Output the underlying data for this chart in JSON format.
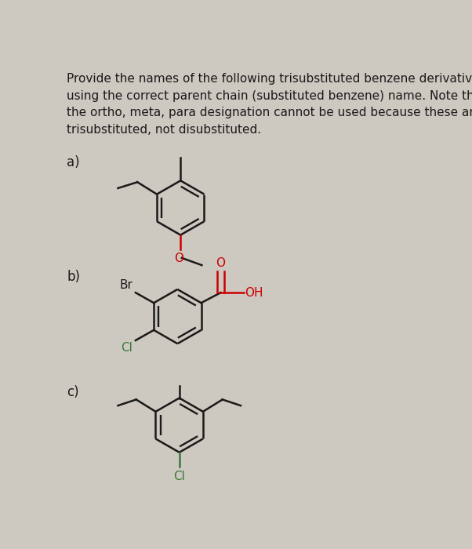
{
  "background_color": "#cdc8c0",
  "text_color": "#1a1a1a",
  "red_color": "#cc0000",
  "green_color": "#3a7a3a",
  "header_text": "Provide the names of the following trisubstituted benzene derivatives\nusing the correct parent chain (substituted benzene) name. Note that\nthe ortho, meta, para designation cannot be used because these are\ntrisubstituted, not disubstituted.",
  "label_a": "a)",
  "label_b": "b)",
  "label_c": "c)",
  "font_size_header": 11.0,
  "font_size_label": 12,
  "font_size_atom": 11
}
